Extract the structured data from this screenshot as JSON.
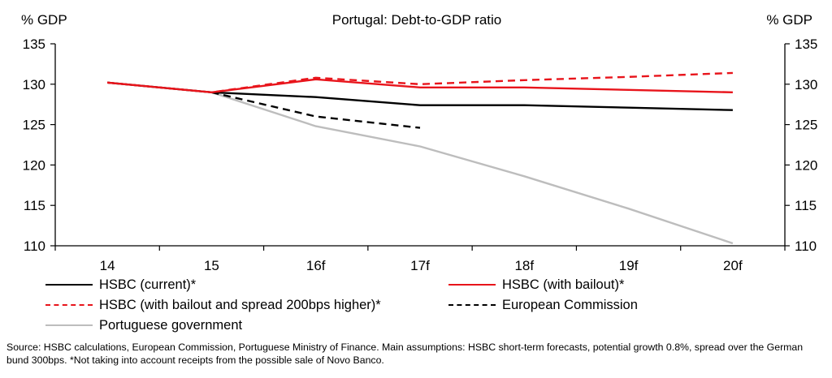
{
  "chart_data": {
    "type": "line",
    "title": "Portugal: Debt-to-GDP ratio",
    "ylabel_left": "% GDP",
    "ylabel_right": "% GDP",
    "categories": [
      "14",
      "15",
      "16f",
      "17f",
      "18f",
      "19f",
      "20f"
    ],
    "ylim": [
      110,
      135
    ],
    "yticks": [
      "110",
      "115",
      "120",
      "125",
      "130",
      "135"
    ],
    "grid": false,
    "series": [
      {
        "name": "HSBC (current)*",
        "color": "#000000",
        "dash": "solid",
        "x": [
          0,
          1,
          2,
          3,
          4,
          5,
          6
        ],
        "values": [
          130.2,
          129.0,
          128.4,
          127.4,
          127.4,
          127.1,
          126.8
        ]
      },
      {
        "name": "HSBC (with bailout)*",
        "color": "#e8141b",
        "dash": "solid",
        "x": [
          0,
          1,
          2,
          3,
          4,
          5,
          6
        ],
        "values": [
          130.2,
          129.0,
          130.6,
          129.6,
          129.6,
          129.3,
          129.0
        ]
      },
      {
        "name": "HSBC (with bailout and spread 200bps higher)*",
        "color": "#e8141b",
        "dash": "dashed",
        "x": [
          0,
          1,
          2,
          3,
          4,
          5,
          6
        ],
        "values": [
          130.2,
          129.0,
          130.8,
          130.0,
          130.5,
          130.9,
          131.4
        ]
      },
      {
        "name": "European Commission",
        "color": "#000000",
        "dash": "dashed",
        "x": [
          1,
          2,
          3
        ],
        "values": [
          129.0,
          126.0,
          124.6
        ]
      },
      {
        "name": "Portuguese government",
        "color": "#bdbdbd",
        "dash": "solid",
        "x": [
          0,
          1,
          2,
          3,
          4,
          5,
          6
        ],
        "values": [
          130.2,
          129.0,
          124.8,
          122.3,
          118.6,
          114.6,
          110.3
        ]
      }
    ],
    "legend_position": "bottom"
  },
  "source_note": "Source: HSBC calculations, European Commission, Portuguese Ministry of Finance. Main assumptions: HSBC short-term forecasts, potential growth 0.8%, spread over the German bund 300bps. *Not taking into account receipts from the possible sale of Novo Banco."
}
